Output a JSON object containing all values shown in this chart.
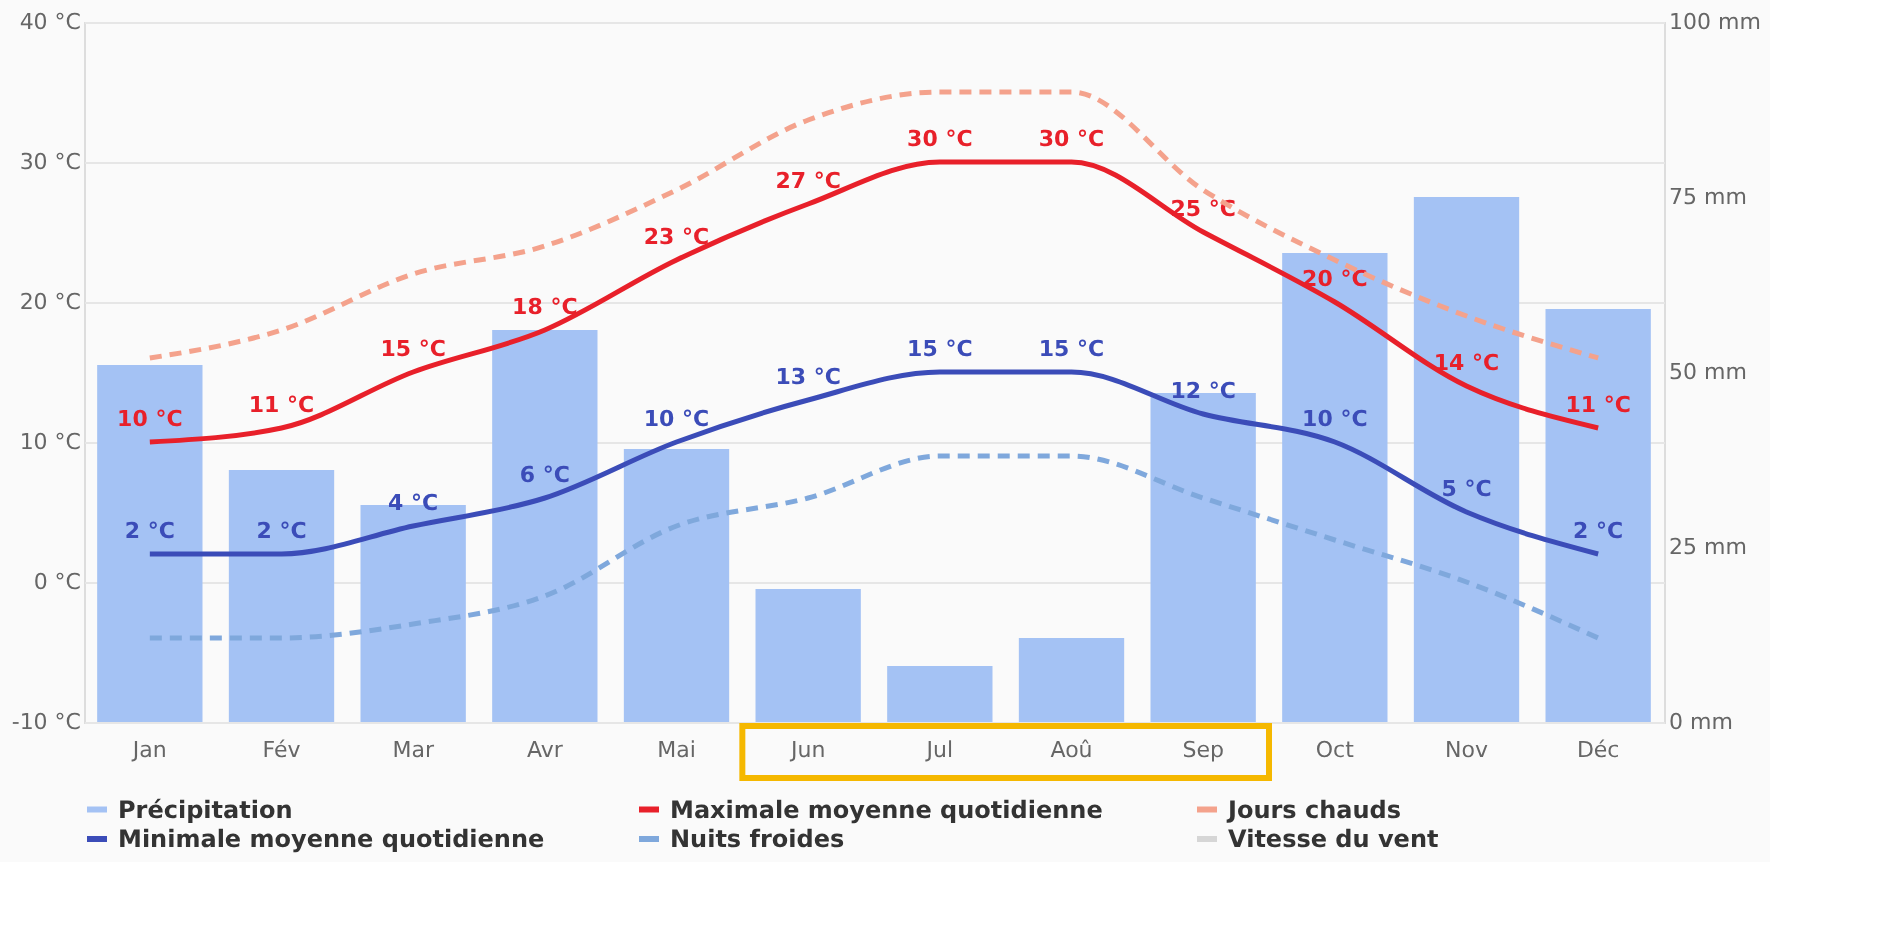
{
  "chart_data": {
    "type": "bar",
    "categories": [
      "Jan",
      "Fév",
      "Mar",
      "Avr",
      "Mai",
      "Jun",
      "Jul",
      "Aoû",
      "Sep",
      "Oct",
      "Nov",
      "Déc"
    ],
    "series": [
      {
        "name": "Précipitation",
        "axis": "y2",
        "color": "#a4c2f4",
        "values": [
          51,
          36,
          31,
          56,
          39,
          19,
          8,
          12,
          47,
          67,
          75,
          59
        ]
      },
      {
        "name": "Maximale moyenne quotidienne",
        "type": "line",
        "color": "#e8202a",
        "values": [
          10,
          11,
          15,
          18,
          23,
          27,
          30,
          30,
          25,
          20,
          14,
          11
        ],
        "value_labels": [
          "10 °C",
          "11 °C",
          "15 °C",
          "18 °C",
          "23 °C",
          "27 °C",
          "30 °C",
          "30 °C",
          "25 °C",
          "20 °C",
          "14 °C",
          "11 °C"
        ]
      },
      {
        "name": "Jours chauds",
        "type": "line",
        "color": "#f4a28c",
        "line_style": "dashed",
        "values": [
          16,
          18,
          22,
          24,
          28,
          33,
          35,
          35,
          28,
          23,
          19,
          16
        ]
      },
      {
        "name": "Minimale moyenne quotidienne",
        "type": "line",
        "color": "#3b4cb8",
        "values": [
          2,
          2,
          4,
          6,
          10,
          13,
          15,
          15,
          12,
          10,
          5,
          2
        ],
        "value_labels": [
          "2 °C",
          "2 °C",
          "4 °C",
          "6 °C",
          "10 °C",
          "13 °C",
          "15 °C",
          "15 °C",
          "12 °C",
          "10 °C",
          "5 °C",
          "2 °C"
        ]
      },
      {
        "name": "Nuits froides",
        "type": "line",
        "color": "#7fa8dc",
        "line_style": "dashed",
        "values": [
          -4,
          -4,
          -3,
          -1,
          4,
          6,
          9,
          9,
          6,
          3,
          0,
          -4
        ]
      },
      {
        "name": "Vitesse du vent",
        "type": "line",
        "color": "#d6d6d6",
        "values": [
          null,
          null,
          null,
          null,
          null,
          null,
          null,
          null,
          null,
          null,
          null,
          null
        ]
      }
    ],
    "ylim": [
      -10,
      40
    ],
    "yticks": [
      {
        "value": -10,
        "label": "-10 °C"
      },
      {
        "value": 0,
        "label": "0 °C"
      },
      {
        "value": 10,
        "label": "10 °C"
      },
      {
        "value": 20,
        "label": "20 °C"
      },
      {
        "value": 30,
        "label": "30 °C"
      },
      {
        "value": 40,
        "label": "40 °C"
      }
    ],
    "y2lim": [
      0,
      100
    ],
    "y2ticks": [
      {
        "value": 0,
        "label": "0 mm"
      },
      {
        "value": 25,
        "label": "25 mm"
      },
      {
        "value": 50,
        "label": "50 mm"
      },
      {
        "value": 75,
        "label": "75 mm"
      },
      {
        "value": 100,
        "label": "100 mm"
      }
    ],
    "grid": "y",
    "legend": "bottom",
    "marker": "none"
  }
}
